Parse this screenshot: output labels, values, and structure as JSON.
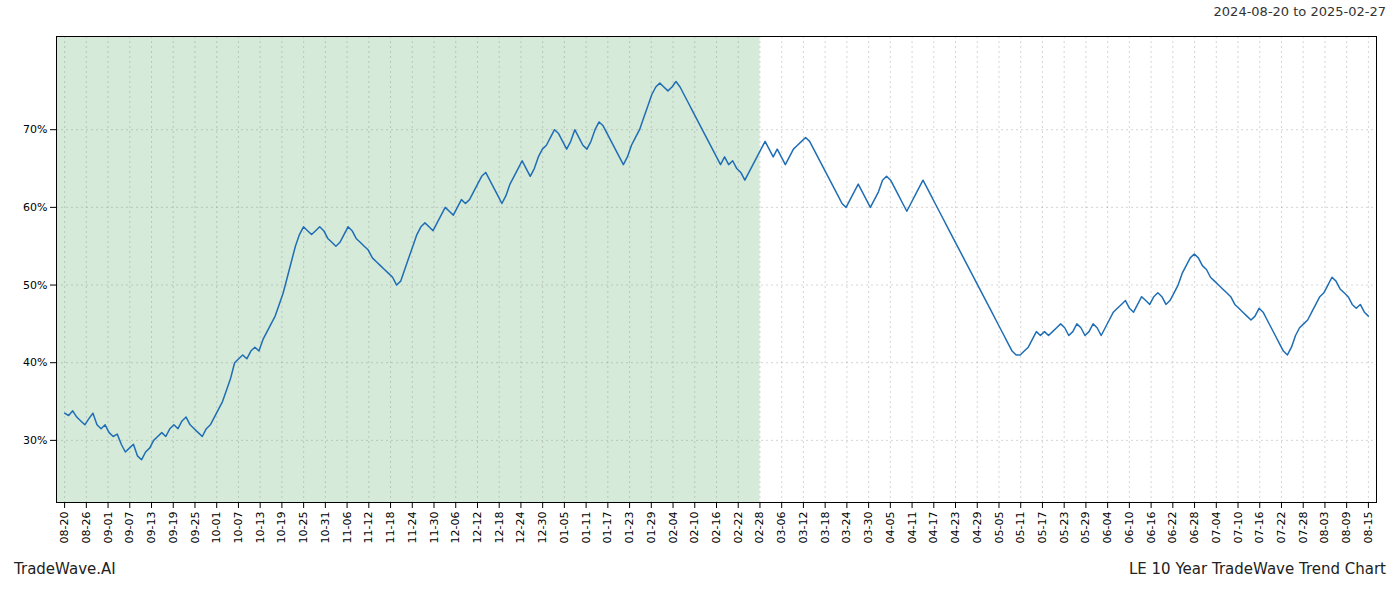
{
  "chart_data": {
    "type": "line",
    "title": "LE 10 Year TradeWave Trend Chart",
    "subtitle": "2024-08-20 to 2025-02-27",
    "annotations": [
      "TradeWave.AI"
    ],
    "color": "#1f6eb5",
    "grid": true,
    "shade": {
      "x": [
        -2,
        171.7333333
      ],
      "color": "#d6ead9"
    },
    "ylim": [
      22,
      82
    ],
    "yticks": [
      {
        "value": 30,
        "label": "30%"
      },
      {
        "value": 40,
        "label": "40%"
      },
      {
        "value": 50,
        "label": "50%"
      },
      {
        "value": 60,
        "label": "60%"
      },
      {
        "value": 70,
        "label": "70%"
      }
    ],
    "xlim": [
      -2,
      324
    ],
    "xticks": [
      {
        "value": 0,
        "label": "08-20"
      },
      {
        "value": 5.366666667,
        "label": "08-26"
      },
      {
        "value": 10.73333333,
        "label": "09-01"
      },
      {
        "value": 16.1,
        "label": "09-07"
      },
      {
        "value": 21.46666667,
        "label": "09-13"
      },
      {
        "value": 26.83333333,
        "label": "09-19"
      },
      {
        "value": 32.2,
        "label": "09-25"
      },
      {
        "value": 37.56666667,
        "label": "10-01"
      },
      {
        "value": 42.93333333,
        "label": "10-07"
      },
      {
        "value": 48.3,
        "label": "10-13"
      },
      {
        "value": 53.66666667,
        "label": "10-19"
      },
      {
        "value": 59.03333333,
        "label": "10-25"
      },
      {
        "value": 64.4,
        "label": "10-31"
      },
      {
        "value": 69.76666667,
        "label": "11-06"
      },
      {
        "value": 75.13333333,
        "label": "11-12"
      },
      {
        "value": 80.5,
        "label": "11-18"
      },
      {
        "value": 85.86666667,
        "label": "11-24"
      },
      {
        "value": 91.23333333,
        "label": "11-30"
      },
      {
        "value": 96.6,
        "label": "12-06"
      },
      {
        "value": 101.9666667,
        "label": "12-12"
      },
      {
        "value": 107.3333333,
        "label": "12-18"
      },
      {
        "value": 112.7,
        "label": "12-24"
      },
      {
        "value": 118.0666667,
        "label": "12-30"
      },
      {
        "value": 123.4333333,
        "label": "01-05"
      },
      {
        "value": 128.8,
        "label": "01-11"
      },
      {
        "value": 134.1666667,
        "label": "01-17"
      },
      {
        "value": 139.5333333,
        "label": "01-23"
      },
      {
        "value": 144.9,
        "label": "01-29"
      },
      {
        "value": 150.2666667,
        "label": "02-04"
      },
      {
        "value": 155.6333333,
        "label": "02-10"
      },
      {
        "value": 161,
        "label": "02-16"
      },
      {
        "value": 166.3666667,
        "label": "02-22"
      },
      {
        "value": 171.7333333,
        "label": "02-28"
      },
      {
        "value": 177.1,
        "label": "03-06"
      },
      {
        "value": 182.4666667,
        "label": "03-12"
      },
      {
        "value": 187.8333333,
        "label": "03-18"
      },
      {
        "value": 193.2,
        "label": "03-24"
      },
      {
        "value": 198.5666667,
        "label": "03-30"
      },
      {
        "value": 203.9333333,
        "label": "04-05"
      },
      {
        "value": 209.3,
        "label": "04-11"
      },
      {
        "value": 214.6666667,
        "label": "04-17"
      },
      {
        "value": 220.0333333,
        "label": "04-23"
      },
      {
        "value": 225.4,
        "label": "04-29"
      },
      {
        "value": 230.7666667,
        "label": "05-05"
      },
      {
        "value": 236.1333333,
        "label": "05-11"
      },
      {
        "value": 241.5,
        "label": "05-17"
      },
      {
        "value": 246.8666667,
        "label": "05-23"
      },
      {
        "value": 252.2333333,
        "label": "05-29"
      },
      {
        "value": 257.6,
        "label": "06-04"
      },
      {
        "value": 262.9666667,
        "label": "06-10"
      },
      {
        "value": 268.3333333,
        "label": "06-16"
      },
      {
        "value": 273.7,
        "label": "06-22"
      },
      {
        "value": 279.0666667,
        "label": "06-28"
      },
      {
        "value": 284.4333333,
        "label": "07-04"
      },
      {
        "value": 289.8,
        "label": "07-10"
      },
      {
        "value": 295.1666667,
        "label": "07-16"
      },
      {
        "value": 300.5333333,
        "label": "07-22"
      },
      {
        "value": 305.9,
        "label": "07-28"
      },
      {
        "value": 311.2666667,
        "label": "08-03"
      },
      {
        "value": 316.6333333,
        "label": "08-09"
      },
      {
        "value": 322,
        "label": "08-15"
      }
    ],
    "values": [
      33.5,
      33.2,
      33.8,
      33.0,
      32.5,
      32.0,
      32.8,
      33.5,
      32.0,
      31.5,
      32.0,
      31.0,
      30.5,
      30.8,
      29.5,
      28.5,
      29.0,
      29.5,
      28.0,
      27.5,
      28.5,
      29.0,
      30.0,
      30.5,
      31.0,
      30.5,
      31.5,
      32.0,
      31.5,
      32.5,
      33.0,
      32.0,
      31.5,
      31.0,
      30.5,
      31.5,
      32.0,
      33.0,
      34.0,
      35.0,
      36.5,
      38.0,
      40.0,
      40.5,
      41.0,
      40.5,
      41.5,
      42.0,
      41.5,
      43.0,
      44.0,
      45.0,
      46.0,
      47.5,
      49.0,
      51.0,
      53.0,
      55.0,
      56.5,
      57.5,
      57.0,
      56.5,
      57.0,
      57.5,
      57.0,
      56.0,
      55.5,
      55.0,
      55.5,
      56.5,
      57.5,
      57.0,
      56.0,
      55.5,
      55.0,
      54.5,
      53.5,
      53.0,
      52.5,
      52.0,
      51.5,
      51.0,
      50.0,
      50.5,
      52.0,
      53.5,
      55.0,
      56.5,
      57.5,
      58.0,
      57.5,
      57.0,
      58.0,
      59.0,
      60.0,
      59.5,
      59.0,
      60.0,
      61.0,
      60.5,
      61.0,
      62.0,
      63.0,
      64.0,
      64.5,
      63.5,
      62.5,
      61.5,
      60.5,
      61.5,
      63.0,
      64.0,
      65.0,
      66.0,
      65.0,
      64.0,
      65.0,
      66.5,
      67.5,
      68.0,
      69.0,
      70.0,
      69.5,
      68.5,
      67.5,
      68.5,
      70.0,
      69.0,
      68.0,
      67.5,
      68.5,
      70.0,
      71.0,
      70.5,
      69.5,
      68.5,
      67.5,
      66.5,
      65.5,
      66.5,
      68.0,
      69.0,
      70.0,
      71.5,
      73.0,
      74.5,
      75.5,
      76.0,
      75.5,
      75.0,
      75.5,
      76.2,
      75.5,
      74.5,
      73.5,
      72.5,
      71.5,
      70.5,
      69.5,
      68.5,
      67.5,
      66.5,
      65.5,
      66.5,
      65.5,
      66.0,
      65.0,
      64.5,
      63.5,
      64.5,
      65.5,
      66.5,
      67.5,
      68.5,
      67.5,
      66.5,
      67.5,
      66.5,
      65.5,
      66.5,
      67.5,
      68.0,
      68.5,
      69.0,
      68.5,
      67.5,
      66.5,
      65.5,
      64.5,
      63.5,
      62.5,
      61.5,
      60.5,
      60.0,
      61.0,
      62.0,
      63.0,
      62.0,
      61.0,
      60.0,
      61.0,
      62.0,
      63.5,
      64.0,
      63.5,
      62.5,
      61.5,
      60.5,
      59.5,
      60.5,
      61.5,
      62.5,
      63.5,
      62.5,
      61.5,
      60.5,
      59.5,
      58.5,
      57.5,
      56.5,
      55.5,
      54.5,
      53.5,
      52.5,
      51.5,
      50.5,
      49.5,
      48.5,
      47.5,
      46.5,
      45.5,
      44.5,
      43.5,
      42.5,
      41.5,
      41.0,
      41.0,
      41.5,
      42.0,
      43.0,
      44.0,
      43.5,
      44.0,
      43.5,
      44.0,
      44.5,
      45.0,
      44.5,
      43.5,
      44.0,
      45.0,
      44.5,
      43.5,
      44.0,
      45.0,
      44.5,
      43.5,
      44.5,
      45.5,
      46.5,
      47.0,
      47.5,
      48.0,
      47.0,
      46.5,
      47.5,
      48.5,
      48.0,
      47.5,
      48.5,
      49.0,
      48.5,
      47.5,
      48.0,
      49.0,
      50.0,
      51.5,
      52.5,
      53.5,
      54.0,
      53.5,
      52.5,
      52.0,
      51.0,
      50.5,
      50.0,
      49.5,
      49.0,
      48.5,
      47.5,
      47.0,
      46.5,
      46.0,
      45.5,
      46.0,
      47.0,
      46.5,
      45.5,
      44.5,
      43.5,
      42.5,
      41.5,
      41.0,
      42.0,
      43.5,
      44.5,
      45.0,
      45.5,
      46.5,
      47.5,
      48.5,
      49.0,
      50.0,
      51.0,
      50.5,
      49.5,
      49.0,
      48.5,
      47.5,
      47.0,
      47.5,
      46.5,
      46.0
    ]
  }
}
